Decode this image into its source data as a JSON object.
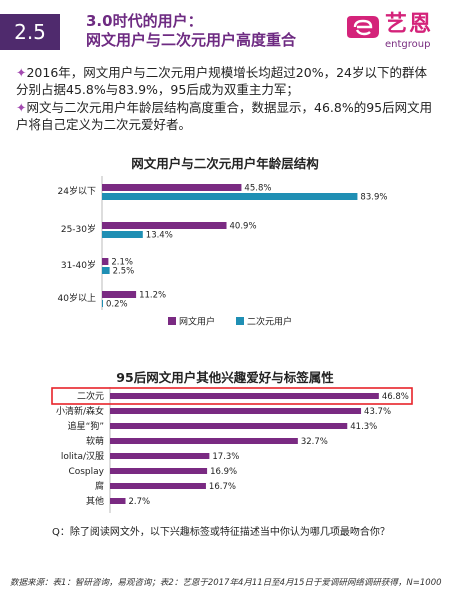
{
  "header": {
    "section_number": "2.5",
    "title_line1": "3.0时代的用户：",
    "title_line2": "网文用户与二次元用户高度重合"
  },
  "logo": {
    "name_zh": "艺恩",
    "name_en": "entgroup"
  },
  "intro": {
    "bullet_icon": "star-icon",
    "para1": "2016年，网文用户与二次元用户规模增长均超过20%，24岁以下的群体分别占据45.8%与83.9%，95后成为双重主力军；",
    "para2": "网文与二次元用户年龄层结构高度重合，数据显示，46.8%的95后网文用户将自己定义为二次元爱好者。"
  },
  "colors": {
    "purple": "#7a2a82",
    "teal": "#1f8fb4",
    "highlight": "#e8232a"
  },
  "chart_data": [
    {
      "type": "bar",
      "orientation": "horizontal",
      "title": "网文用户与二次元用户年龄层结构",
      "categories": [
        "24岁以下",
        "25-30岁",
        "31-40岁",
        "40岁以上"
      ],
      "series": [
        {
          "name": "网文用户",
          "values": [
            45.8,
            40.9,
            2.1,
            11.2
          ],
          "labels": [
            "45.8%",
            "40.9%",
            "2.1%",
            "11.2%"
          ]
        },
        {
          "name": "二次元用户",
          "values": [
            83.9,
            13.4,
            2.5,
            0.2
          ],
          "labels": [
            "83.9%",
            "13.4%",
            "2.5%",
            "0.2%"
          ]
        }
      ],
      "xlim": [
        0,
        90
      ],
      "legend": "bottom"
    },
    {
      "type": "bar",
      "orientation": "horizontal",
      "title": "95后网文用户其他兴趣爱好与标签属性",
      "categories": [
        "二次元",
        "小清新/森女",
        "追星“狗”",
        "软萌",
        "lolita/汉服",
        "Cosplay",
        "腐",
        "其他"
      ],
      "values": [
        46.8,
        43.7,
        41.3,
        32.7,
        17.3,
        16.9,
        16.7,
        2.7
      ],
      "labels": [
        "46.8%",
        "43.7%",
        "41.3%",
        "32.7%",
        "17.3%",
        "16.9%",
        "16.7%",
        "2.7%"
      ],
      "xlim": [
        0,
        47
      ],
      "highlighted_category": "二次元"
    }
  ],
  "question": "Q：除了阅读网文外，以下兴趣标签或特征描述当中你认为哪几项最吻合你？",
  "footnote": "数据来源：表1：智研咨询，易观咨询；表2：艺恩于2017年4月11日至4月15日于爱调研网络调研获得，N=1000。"
}
